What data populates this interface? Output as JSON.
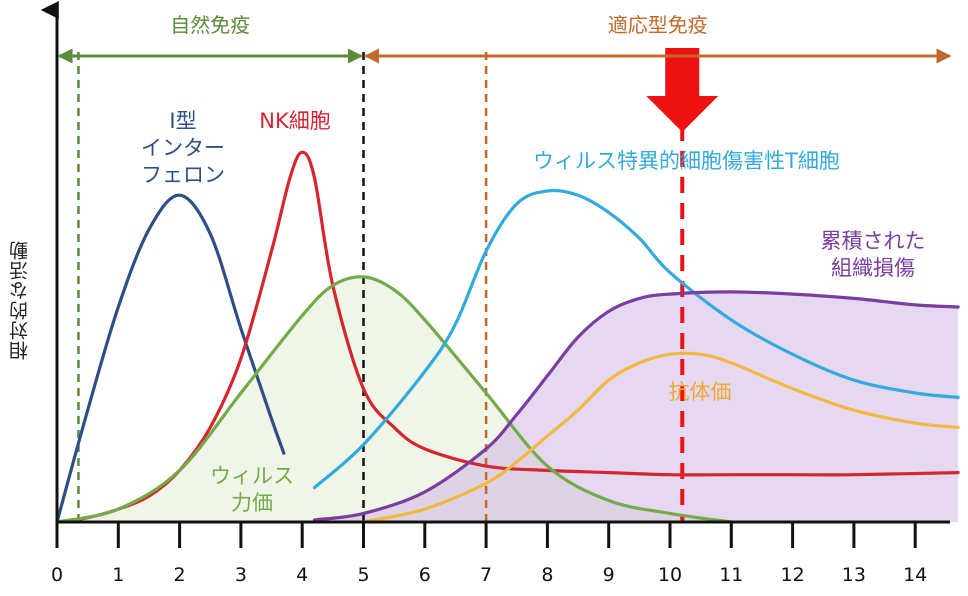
{
  "chart_data": {
    "type": "line",
    "xlabel": "",
    "ylabel": "相対的な活動",
    "xlim": [
      0,
      14.7
    ],
    "ylim": [
      0,
      1.0
    ],
    "xticks": [
      0,
      1,
      2,
      3,
      4,
      5,
      6,
      7,
      8,
      9,
      10,
      11,
      12,
      13,
      14
    ],
    "phases": [
      {
        "label": "自然免疫",
        "from": 0,
        "to": 5,
        "color": "#5a8a3a"
      },
      {
        "label": "適応型免疫",
        "from": 5,
        "to": 14.6,
        "color": "#c0692a"
      }
    ],
    "vlines": [
      {
        "x": 0.35,
        "color": "#5a8a3a"
      },
      {
        "x": 5,
        "color": "#111111"
      },
      {
        "x": 7,
        "color": "#c0692a"
      },
      {
        "x": 10.2,
        "color": "#ee1111"
      }
    ],
    "series": [
      {
        "name": "I型\nインター\nフェロン",
        "color": "#2e4e84",
        "x": [
          0,
          0.5,
          1,
          1.5,
          2,
          2.5,
          3,
          3.5,
          3.7
        ],
        "y": [
          0,
          0.26,
          0.5,
          0.68,
          0.76,
          0.67,
          0.45,
          0.24,
          0.16
        ]
      },
      {
        "name": "NK細胞",
        "color": "#d52530",
        "x": [
          0,
          0.5,
          1,
          1.5,
          2,
          2.5,
          3,
          3.5,
          3.8,
          4,
          4.2,
          4.5,
          5,
          5.5,
          6,
          7,
          8,
          9,
          10,
          11,
          12,
          13,
          14.7
        ],
        "y": [
          0,
          0.01,
          0.03,
          0.06,
          0.12,
          0.22,
          0.38,
          0.63,
          0.8,
          0.86,
          0.8,
          0.55,
          0.31,
          0.22,
          0.17,
          0.13,
          0.12,
          0.115,
          0.11,
          0.11,
          0.11,
          0.11,
          0.115
        ]
      },
      {
        "name": "ウィルス\n力価",
        "color": "#74aa4a",
        "x": [
          0,
          1,
          2,
          3,
          4,
          4.5,
          5,
          5.5,
          6,
          7,
          8,
          9,
          10,
          11
        ],
        "y": [
          0,
          0.03,
          0.12,
          0.3,
          0.48,
          0.55,
          0.57,
          0.54,
          0.47,
          0.3,
          0.13,
          0.05,
          0.02,
          0
        ]
      },
      {
        "name": "ウィルス特異的細胞傷害性T細胞",
        "color": "#33aadd",
        "x": [
          4.2,
          5,
          6,
          6.5,
          7,
          7.5,
          8,
          8.5,
          9,
          9.5,
          10,
          11,
          12,
          13,
          14,
          14.7
        ],
        "y": [
          0.08,
          0.18,
          0.35,
          0.46,
          0.63,
          0.74,
          0.77,
          0.76,
          0.72,
          0.66,
          0.58,
          0.47,
          0.39,
          0.33,
          0.3,
          0.29
        ]
      },
      {
        "name": "累積された\n組織損傷",
        "color": "#7b3da0",
        "x": [
          4.2,
          5,
          6,
          7,
          7.5,
          8,
          8.5,
          9,
          9.5,
          10,
          11,
          12,
          13,
          14,
          14.7
        ],
        "y": [
          0.005,
          0.02,
          0.07,
          0.17,
          0.25,
          0.34,
          0.43,
          0.49,
          0.52,
          0.53,
          0.535,
          0.53,
          0.52,
          0.505,
          0.5
        ]
      },
      {
        "name": "抗体価",
        "color": "#f2b840",
        "x": [
          5,
          6,
          7,
          7.5,
          8,
          8.5,
          9,
          9.5,
          10,
          10.5,
          11,
          12,
          13,
          14,
          14.7
        ],
        "y": [
          0,
          0.03,
          0.09,
          0.14,
          0.2,
          0.26,
          0.33,
          0.37,
          0.39,
          0.39,
          0.37,
          0.31,
          0.26,
          0.23,
          0.22
        ]
      }
    ]
  }
}
